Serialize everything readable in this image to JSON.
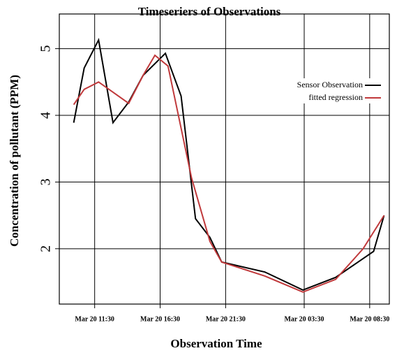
{
  "chart_data": {
    "type": "line",
    "title": "Timeseriers of Observations",
    "xlabel": "Observation Time",
    "ylabel": "Concentration of pollutant (PPM)",
    "series": [
      {
        "name": "Sensor Observation",
        "color": "#000000",
        "x": [
          9.9,
          10.7,
          11.8,
          12.9,
          14.1,
          15.2,
          16.9,
          18.1,
          19.2,
          20.3,
          21.2,
          24.5,
          27.4,
          29.9,
          32.8,
          33.6
        ],
        "values": [
          3.89,
          4.71,
          5.13,
          3.89,
          4.2,
          4.6,
          4.93,
          4.29,
          2.45,
          2.17,
          1.8,
          1.65,
          1.38,
          1.57,
          1.96,
          2.5
        ]
      },
      {
        "name": "fitted regression",
        "color": "#c0393b",
        "x": [
          9.9,
          10.7,
          11.8,
          14.1,
          15.2,
          16.1,
          17.1,
          18.9,
          20.3,
          21.2,
          24.5,
          27.4,
          29.9,
          32.0,
          33.6
        ],
        "values": [
          4.16,
          4.39,
          4.5,
          4.18,
          4.6,
          4.9,
          4.74,
          3.06,
          2.11,
          1.8,
          1.59,
          1.35,
          1.54,
          2.0,
          2.5
        ]
      }
    ],
    "xlim": [
      8.8,
      34.0
    ],
    "xticks": [
      {
        "value": 11.5,
        "label": "Mar 20 11:30"
      },
      {
        "value": 16.5,
        "label": "Mar 20 16:30"
      },
      {
        "value": 21.5,
        "label": "Mar 20 21:30"
      },
      {
        "value": 27.5,
        "label": "Mar 20 03:30"
      },
      {
        "value": 32.5,
        "label": "Mar 20 08:30"
      }
    ],
    "ylim": [
      1.17,
      5.52
    ],
    "yticks": [
      2,
      3,
      4,
      5
    ],
    "grid": true,
    "legend": "top-right"
  }
}
